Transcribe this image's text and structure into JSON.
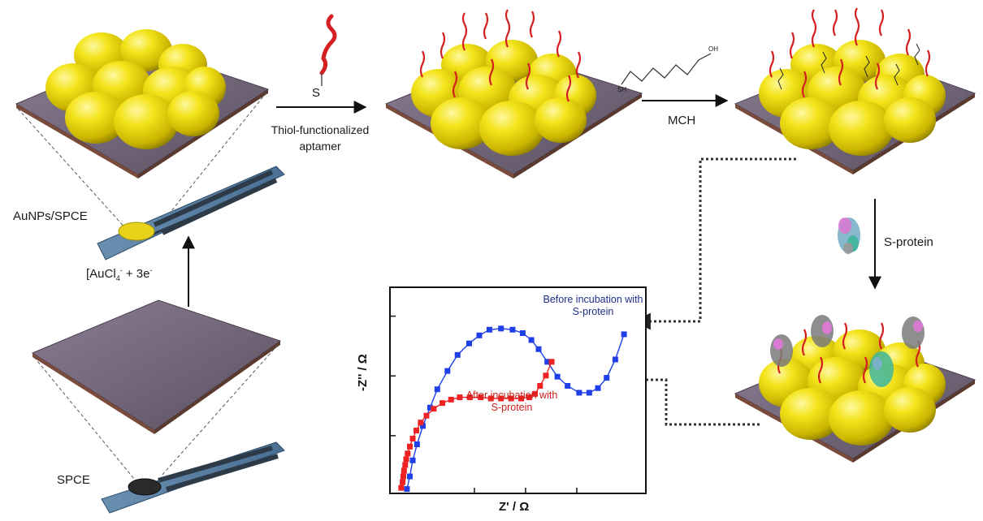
{
  "labels": {
    "aunps_spce": "AuNPs/SPCE",
    "spce": "SPCE",
    "reaction_left": "[AuCl",
    "reaction_sub": "4",
    "reaction_sup_minus": "-",
    "reaction_right": " + 3e",
    "reaction_sup_e": "-",
    "aptamer_s": "S",
    "aptamer_line1": "Thiol-functionalized",
    "aptamer_line2": "aptamer",
    "mch": "MCH",
    "mch_sh": "SH",
    "mch_oh": "OH",
    "sprotein": "S-protein"
  },
  "chart_data": {
    "type": "scatter",
    "xlabel": "Z' / Ω",
    "ylabel": "-Z'' / Ω",
    "series": [
      {
        "annotation_line1": "Before incubation with",
        "annotation_line2": "S-protein",
        "color": "#1f3fe8",
        "x": [
          0.5,
          0.7,
          0.9,
          1.2,
          1.6,
          2.1,
          2.6,
          3.3,
          4.0,
          4.8,
          5.5,
          6.2,
          7.0,
          7.8,
          8.5,
          9.1,
          9.6,
          10.2,
          10.9,
          11.6,
          12.4,
          13.1,
          13.7,
          14.3,
          14.9,
          15.5
        ],
        "y": [
          0.05,
          0.6,
          1.3,
          2.0,
          2.8,
          3.6,
          4.4,
          5.2,
          5.9,
          6.4,
          6.75,
          7.0,
          7.05,
          7.0,
          6.85,
          6.55,
          6.15,
          5.6,
          4.95,
          4.55,
          4.25,
          4.25,
          4.45,
          4.9,
          5.7,
          6.8
        ]
      },
      {
        "annotation_line1": "After incubation with",
        "annotation_line2": "S-protein",
        "color": "#ee2222",
        "x": [
          0.1,
          0.2,
          0.25,
          0.3,
          0.38,
          0.45,
          0.55,
          0.7,
          0.9,
          1.15,
          1.45,
          1.85,
          2.35,
          2.95,
          3.55,
          4.15,
          4.85,
          5.6,
          6.3,
          7.0,
          7.7,
          8.4,
          8.95,
          9.35,
          9.7,
          10.1,
          10.5
        ],
        "y": [
          0.1,
          0.35,
          0.6,
          0.85,
          1.1,
          1.35,
          1.6,
          1.9,
          2.25,
          2.6,
          2.95,
          3.25,
          3.55,
          3.8,
          3.95,
          4.05,
          4.05,
          4.05,
          4.0,
          4.0,
          4.0,
          4.0,
          4.05,
          4.2,
          4.55,
          5.0,
          5.6
        ]
      }
    ],
    "xlim": [
      0,
      16
    ],
    "ylim": [
      0,
      8
    ]
  }
}
